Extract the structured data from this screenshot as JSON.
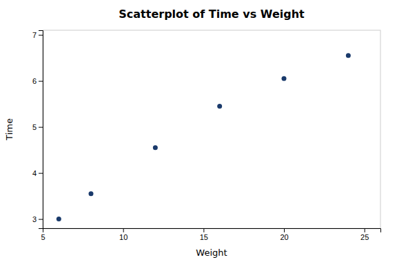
{
  "chart_data": {
    "type": "scatter",
    "title": "Scatterplot of Time vs Weight",
    "xlabel": "Weight",
    "ylabel": "Time",
    "x": [
      6,
      8,
      12,
      16,
      20,
      24
    ],
    "values": [
      3.0,
      3.55,
      4.55,
      5.45,
      6.05,
      6.55
    ],
    "color": "#1a3a6b",
    "xlim": [
      5,
      26
    ],
    "ylim": [
      2.8,
      7.1
    ],
    "xticks": [
      5,
      10,
      15,
      20,
      25
    ],
    "yticks": [
      3,
      4,
      5,
      6,
      7
    ],
    "grid": false
  }
}
